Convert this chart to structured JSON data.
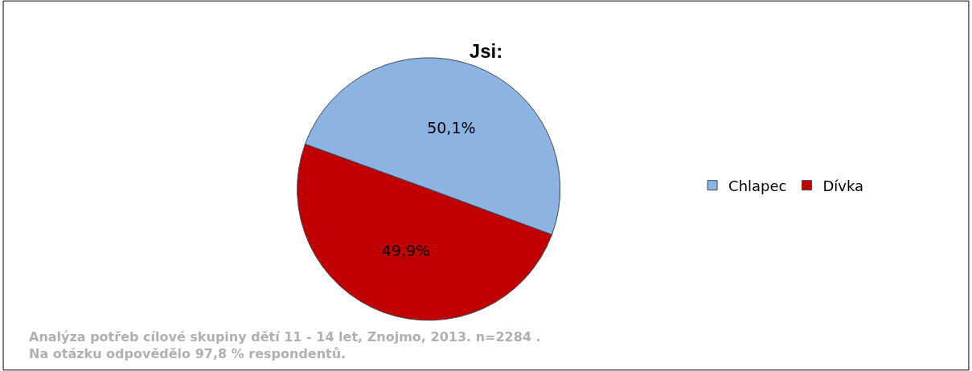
{
  "chart_data": {
    "type": "pie",
    "title": "Jsi:",
    "categories": [
      "Chlapec",
      "Dívka"
    ],
    "values": [
      50.1,
      49.9
    ],
    "value_labels": [
      "50,1%",
      "49,9%"
    ],
    "colors": [
      "#8db3e2",
      "#c00000"
    ],
    "legend": "right",
    "annotations": [
      "Analýza potřeb cílové skupiny dětí 11 - 14 let, Znojmo, 2013. n=2284 .\nNa otázku odpovědělo 97,8 % respondentů."
    ]
  }
}
